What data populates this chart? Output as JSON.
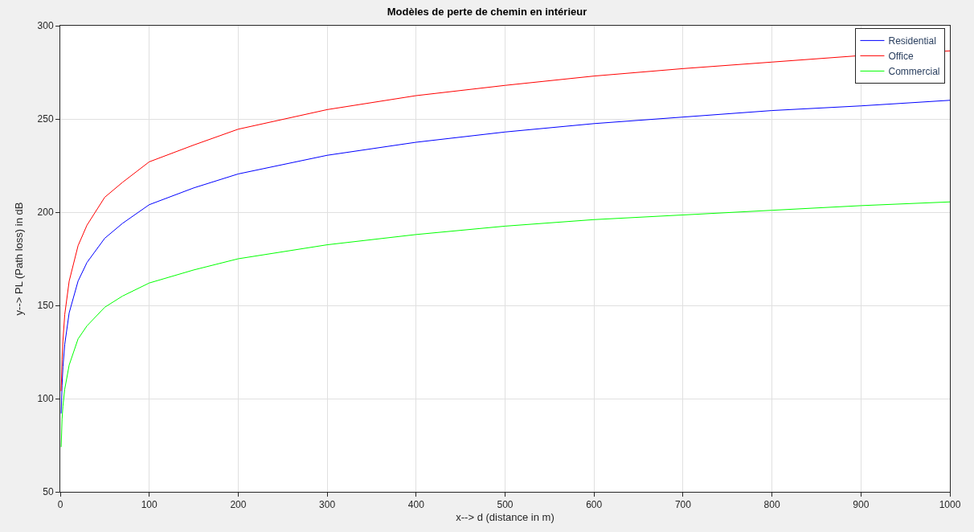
{
  "chart_data": {
    "type": "line",
    "title": "Modèles de perte de chemin en intérieur",
    "xlabel": "x--> d (distance in m)",
    "ylabel": "y--> PL (Path loss) in dB",
    "x": [
      1,
      2,
      3,
      5,
      10,
      20,
      30,
      50,
      70,
      100,
      150,
      200,
      300,
      400,
      500,
      600,
      700,
      800,
      900,
      1000
    ],
    "series": [
      {
        "name": "Residential",
        "color": "#0000ff",
        "values": [
          92,
          107,
          117,
          129,
          146,
          163,
          173,
          186,
          194,
          204,
          213,
          220.5,
          230.5,
          237.5,
          243,
          247.5,
          251,
          254.5,
          257,
          260
        ]
      },
      {
        "name": "Office",
        "color": "#ff0000",
        "values": [
          104,
          121,
          131,
          145,
          163,
          182,
          193,
          208,
          216,
          227,
          236,
          244.5,
          255,
          262.5,
          268,
          273,
          277,
          280.5,
          284,
          286.5
        ]
      },
      {
        "name": "Commercial",
        "color": "#00ff00",
        "values": [
          74,
          89,
          96,
          105,
          118,
          132,
          139,
          149,
          155,
          162,
          169,
          175,
          182.5,
          188,
          192.5,
          196,
          198.5,
          201,
          203.5,
          205.5
        ]
      }
    ],
    "xlim": [
      0,
      1000
    ],
    "xticks": [
      0,
      100,
      200,
      300,
      400,
      500,
      600,
      700,
      800,
      900,
      1000
    ],
    "ylim": [
      50,
      300
    ],
    "yticks": [
      50,
      100,
      150,
      200,
      250,
      300
    ],
    "grid": true,
    "legend": "top right",
    "marker": "none",
    "line_style": "solid"
  }
}
